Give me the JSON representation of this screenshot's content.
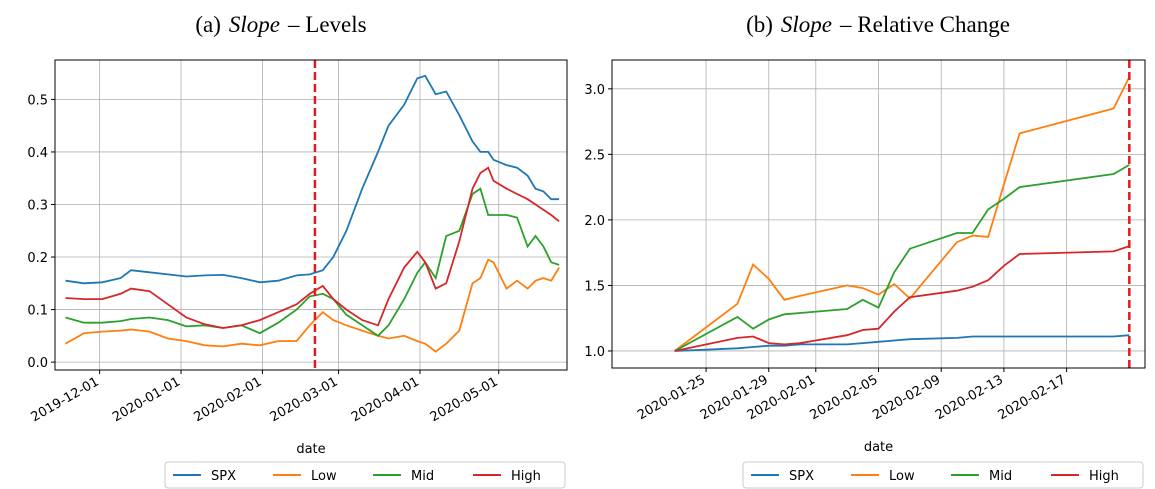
{
  "chart_data": [
    {
      "type": "line",
      "label": "(a)",
      "title_italic": "Slope",
      "title": "– Levels",
      "x_label": "date",
      "grid": true,
      "legend": "below right",
      "vline": "2020-02-21",
      "vline_color": "#e41a1c",
      "xlim": [
        "2019-11-14",
        "2020-05-27"
      ],
      "ylim": [
        -0.015,
        0.575
      ],
      "xticks": [
        "2019-12-01",
        "2020-01-01",
        "2020-02-01",
        "2020-03-01",
        "2020-04-01",
        "2020-05-01"
      ],
      "yticks": [
        {
          "value": 0,
          "label": "0.0"
        },
        0.1,
        0.2,
        0.3,
        0.4,
        0.5
      ],
      "x": [
        "2019-11-18",
        "2019-11-25",
        "2019-12-02",
        "2019-12-09",
        "2019-12-13",
        "2019-12-20",
        "2019-12-27",
        "2020-01-03",
        "2020-01-10",
        "2020-01-17",
        "2020-01-24",
        "2020-01-31",
        "2020-02-07",
        "2020-02-14",
        "2020-02-19",
        "2020-02-24",
        "2020-02-28",
        "2020-03-04",
        "2020-03-10",
        "2020-03-16",
        "2020-03-20",
        "2020-03-26",
        "2020-03-31",
        "2020-04-03",
        "2020-04-07",
        "2020-04-11",
        "2020-04-16",
        "2020-04-21",
        "2020-04-24",
        "2020-04-27",
        "2020-04-29",
        "2020-05-04",
        "2020-05-08",
        "2020-05-12",
        "2020-05-15",
        "2020-05-18",
        "2020-05-21",
        "2020-05-24"
      ],
      "series": [
        {
          "name": "SPX",
          "color": "#1f77b4",
          "values": [
            0.155,
            0.15,
            0.152,
            0.16,
            0.175,
            0.171,
            0.167,
            0.163,
            0.165,
            0.166,
            0.16,
            0.152,
            0.155,
            0.165,
            0.167,
            0.175,
            0.2,
            0.25,
            0.33,
            0.4,
            0.45,
            0.49,
            0.54,
            0.545,
            0.51,
            0.515,
            0.47,
            0.42,
            0.4,
            0.4,
            0.385,
            0.375,
            0.37,
            0.355,
            0.33,
            0.325,
            0.31,
            0.31
          ]
        },
        {
          "name": "Low",
          "color": "#ff7f0e",
          "values": [
            0.035,
            0.055,
            0.058,
            0.06,
            0.062,
            0.058,
            0.045,
            0.04,
            0.032,
            0.03,
            0.035,
            0.032,
            0.04,
            0.04,
            0.07,
            0.095,
            0.08,
            0.07,
            0.06,
            0.05,
            0.045,
            0.05,
            0.04,
            0.035,
            0.02,
            0.035,
            0.06,
            0.15,
            0.16,
            0.195,
            0.19,
            0.14,
            0.155,
            0.14,
            0.155,
            0.16,
            0.155,
            0.18
          ]
        },
        {
          "name": "Mid",
          "color": "#2ca02c",
          "values": [
            0.085,
            0.075,
            0.075,
            0.078,
            0.082,
            0.085,
            0.08,
            0.068,
            0.07,
            0.065,
            0.07,
            0.055,
            0.075,
            0.1,
            0.125,
            0.13,
            0.12,
            0.09,
            0.07,
            0.05,
            0.07,
            0.12,
            0.17,
            0.19,
            0.16,
            0.24,
            0.25,
            0.32,
            0.33,
            0.28,
            0.28,
            0.28,
            0.275,
            0.22,
            0.24,
            0.22,
            0.19,
            0.185
          ]
        },
        {
          "name": "High",
          "color": "#d62728",
          "values": [
            0.122,
            0.12,
            0.12,
            0.13,
            0.14,
            0.135,
            0.11,
            0.085,
            0.072,
            0.065,
            0.07,
            0.08,
            0.095,
            0.11,
            0.13,
            0.145,
            0.12,
            0.1,
            0.08,
            0.07,
            0.12,
            0.18,
            0.21,
            0.19,
            0.14,
            0.15,
            0.23,
            0.33,
            0.36,
            0.37,
            0.345,
            0.33,
            0.32,
            0.31,
            0.3,
            0.29,
            0.28,
            0.268
          ]
        }
      ]
    },
    {
      "type": "line",
      "label": "(b)",
      "title_italic": "Slope",
      "title": "– Relative Change",
      "x_label": "date",
      "grid": true,
      "legend": "below right",
      "vline": "2020-02-21",
      "vline_color": "#e41a1c",
      "xlim": [
        "2020-01-19",
        "2020-02-22"
      ],
      "ylim": [
        0.87,
        3.22
      ],
      "xticks": [
        "2020-01-25",
        "2020-01-29",
        "2020-02-01",
        "2020-02-05",
        "2020-02-09",
        "2020-02-13",
        "2020-02-17"
      ],
      "yticks": [
        {
          "value": 1,
          "label": "1.0"
        },
        1.5,
        {
          "value": 2,
          "label": "2.0"
        },
        2.5,
        {
          "value": 3,
          "label": "3.0"
        }
      ],
      "x": [
        "2020-01-23",
        "2020-01-27",
        "2020-01-28",
        "2020-01-29",
        "2020-01-30",
        "2020-01-31",
        "2020-02-03",
        "2020-02-04",
        "2020-02-05",
        "2020-02-06",
        "2020-02-07",
        "2020-02-10",
        "2020-02-11",
        "2020-02-12",
        "2020-02-13",
        "2020-02-14",
        "2020-02-20",
        "2020-02-21"
      ],
      "series": [
        {
          "name": "SPX",
          "color": "#1f77b4",
          "values": [
            1.0,
            1.02,
            1.03,
            1.04,
            1.04,
            1.05,
            1.05,
            1.06,
            1.07,
            1.08,
            1.09,
            1.1,
            1.11,
            1.11,
            1.11,
            1.11,
            1.11,
            1.12
          ]
        },
        {
          "name": "Low",
          "color": "#ff7f0e",
          "values": [
            1.0,
            1.36,
            1.66,
            1.55,
            1.39,
            1.42,
            1.5,
            1.48,
            1.43,
            1.51,
            1.4,
            1.83,
            1.88,
            1.87,
            2.27,
            2.66,
            2.85,
            3.09
          ]
        },
        {
          "name": "Mid",
          "color": "#2ca02c",
          "values": [
            1.0,
            1.26,
            1.17,
            1.24,
            1.28,
            1.29,
            1.32,
            1.39,
            1.33,
            1.6,
            1.78,
            1.9,
            1.9,
            2.08,
            2.16,
            2.25,
            2.35,
            2.42
          ]
        },
        {
          "name": "High",
          "color": "#d62728",
          "values": [
            1.0,
            1.1,
            1.11,
            1.06,
            1.05,
            1.06,
            1.12,
            1.16,
            1.17,
            1.3,
            1.41,
            1.46,
            1.49,
            1.54,
            1.65,
            1.74,
            1.76,
            1.8
          ]
        }
      ]
    }
  ]
}
